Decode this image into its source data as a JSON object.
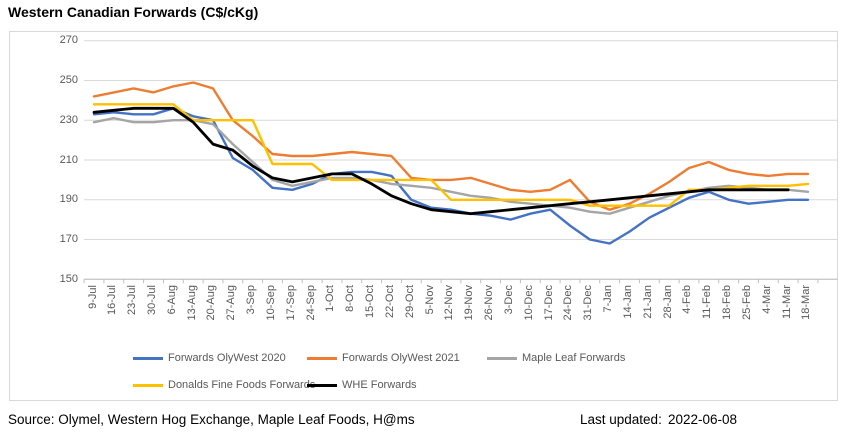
{
  "title": "Western Canadian Forwards (C$/cKg)",
  "footer": {
    "source": "Source: Olymel, Western Hog Exchange, Maple Leaf Foods, H@ms",
    "last_updated_label": "Last updated:",
    "last_updated_value": "2022-06-08"
  },
  "colors": {
    "gridline": "#D9D9D9",
    "axis_line": "#BFBFBF",
    "axis_text": "#595959",
    "legend_text": "#595959"
  },
  "chart_data": {
    "type": "line",
    "title": "Western Canadian Forwards (C$/cKg)",
    "xlabel": "",
    "ylabel": "",
    "ylim": [
      150,
      270
    ],
    "yticks": [
      270,
      250,
      230,
      210,
      190,
      170,
      150
    ],
    "grid": true,
    "legend_position": "bottom",
    "categories": [
      "9-Jul",
      "16-Jul",
      "23-Jul",
      "30-Jul",
      "6-Aug",
      "13-Aug",
      "20-Aug",
      "27-Aug",
      "3-Sep",
      "10-Sep",
      "17-Sep",
      "24-Sep",
      "1-Oct",
      "8-Oct",
      "15-Oct",
      "22-Oct",
      "29-Oct",
      "5-Nov",
      "12-Nov",
      "19-Nov",
      "26-Nov",
      "3-Dec",
      "10-Dec",
      "17-Dec",
      "24-Dec",
      "31-Dec",
      "7-Jan",
      "14-Jan",
      "21-Jan",
      "28-Jan",
      "4-Feb",
      "11-Feb",
      "18-Feb",
      "25-Feb",
      "4-Mar",
      "11-Mar",
      "18-Mar"
    ],
    "series": [
      {
        "name": "Forwards OlyWest 2020",
        "color": "#4472C4",
        "width": 2.4,
        "values": [
          233,
          234,
          233,
          233,
          236,
          232,
          230,
          211,
          205,
          196,
          195,
          198,
          203,
          204,
          204,
          202,
          190,
          186,
          185,
          183,
          182,
          180,
          183,
          185,
          177,
          170,
          168,
          174,
          181,
          186,
          191,
          194,
          190,
          188,
          189,
          190,
          190
        ]
      },
      {
        "name": "Forwards OlyWest 2021",
        "color": "#ED7D31",
        "width": 2.4,
        "values": [
          242,
          244,
          246,
          244,
          247,
          249,
          246,
          230,
          222,
          213,
          212,
          212,
          213,
          214,
          213,
          212,
          201,
          200,
          200,
          201,
          198,
          195,
          194,
          195,
          200,
          189,
          185,
          188,
          193,
          199,
          206,
          209,
          205,
          203,
          202,
          203,
          203
        ]
      },
      {
        "name": "Maple Leaf Forwards",
        "color": "#A5A5A5",
        "width": 2.4,
        "values": [
          229,
          231,
          229,
          229,
          230,
          230,
          228,
          218,
          209,
          200,
          197,
          199,
          201,
          201,
          200,
          198,
          197,
          196,
          194,
          192,
          191,
          189,
          188,
          187,
          186,
          184,
          183,
          186,
          189,
          192,
          194,
          196,
          197,
          196,
          195,
          195,
          194
        ]
      },
      {
        "name": "Donalds Fine Foods Forwards",
        "color": "#FFC000",
        "width": 2.4,
        "values": [
          238,
          238,
          238,
          238,
          238,
          230,
          230,
          230,
          230,
          208,
          208,
          208,
          200,
          200,
          200,
          200,
          200,
          200,
          190,
          190,
          190,
          190,
          190,
          190,
          190,
          187,
          187,
          187,
          187,
          187,
          195,
          195,
          196,
          197,
          197,
          197,
          198
        ]
      },
      {
        "name": "WHE Forwards",
        "color": "#000000",
        "width": 2.8,
        "values": [
          234,
          235,
          236,
          236,
          236,
          229,
          218,
          215,
          207,
          201,
          199,
          201,
          203,
          203,
          198,
          192,
          188,
          185,
          184,
          183,
          184,
          185,
          186,
          187,
          188,
          189,
          190,
          191,
          192,
          193,
          194,
          195,
          195,
          195,
          195,
          195,
          null
        ]
      }
    ]
  }
}
